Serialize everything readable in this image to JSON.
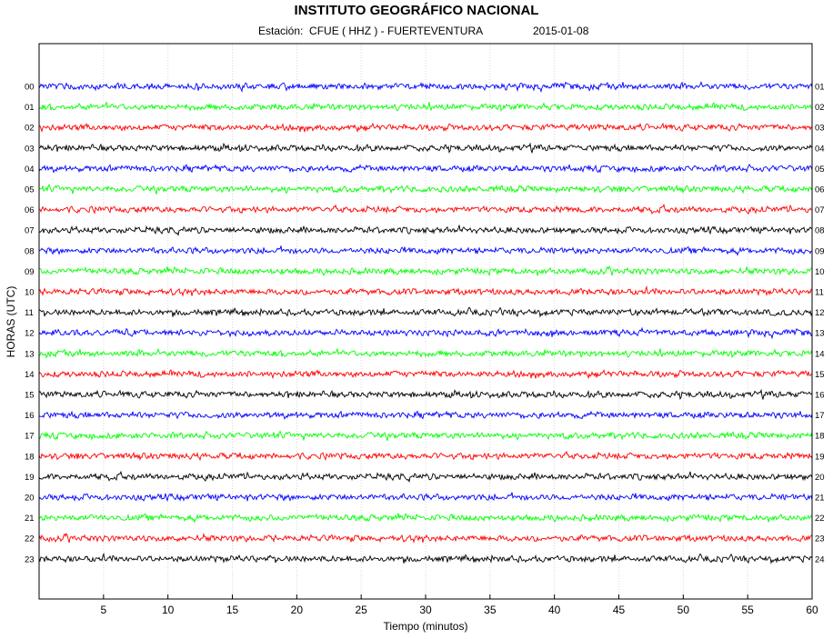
{
  "header": {
    "title": "INSTITUTO GEOGRÁFICO NACIONAL",
    "station_text": "Estación:  CFUE ( HHZ ) - FUERTEVENTURA",
    "date": "2015-01-08"
  },
  "chart_data": {
    "type": "line",
    "title": "INSTITUTO GEOGRÁFICO NACIONAL",
    "subtitle": "Estación:  CFUE ( HHZ ) - FUERTEVENTURA          2015-01-08",
    "xlabel": "Tiempo (minutos)",
    "ylabel": "HORAS (UTC)",
    "xlim": [
      0,
      60
    ],
    "x_ticks": [
      5,
      10,
      15,
      20,
      25,
      30,
      35,
      40,
      45,
      50,
      55,
      60
    ],
    "grid": "vertical dotted lines every 5 minutes",
    "series_colors": [
      "#0000ff",
      "#00ff00",
      "#ff0000",
      "#000000"
    ],
    "rows": [
      {
        "left": "00",
        "right": "01",
        "color": "#0000ff"
      },
      {
        "left": "01",
        "right": "02",
        "color": "#00ff00"
      },
      {
        "left": "02",
        "right": "03",
        "color": "#ff0000"
      },
      {
        "left": "03",
        "right": "04",
        "color": "#000000"
      },
      {
        "left": "04",
        "right": "05",
        "color": "#0000ff"
      },
      {
        "left": "05",
        "right": "06",
        "color": "#00ff00"
      },
      {
        "left": "06",
        "right": "07",
        "color": "#ff0000"
      },
      {
        "left": "07",
        "right": "08",
        "color": "#000000"
      },
      {
        "left": "08",
        "right": "09",
        "color": "#0000ff"
      },
      {
        "left": "09",
        "right": "10",
        "color": "#00ff00"
      },
      {
        "left": "10",
        "right": "11",
        "color": "#ff0000"
      },
      {
        "left": "11",
        "right": "12",
        "color": "#000000"
      },
      {
        "left": "12",
        "right": "13",
        "color": "#0000ff"
      },
      {
        "left": "13",
        "right": "14",
        "color": "#00ff00"
      },
      {
        "left": "14",
        "right": "15",
        "color": "#ff0000"
      },
      {
        "left": "15",
        "right": "16",
        "color": "#000000"
      },
      {
        "left": "16",
        "right": "17",
        "color": "#0000ff"
      },
      {
        "left": "17",
        "right": "18",
        "color": "#00ff00"
      },
      {
        "left": "18",
        "right": "19",
        "color": "#ff0000"
      },
      {
        "left": "19",
        "right": "20",
        "color": "#000000"
      },
      {
        "left": "20",
        "right": "21",
        "color": "#0000ff"
      },
      {
        "left": "21",
        "right": "22",
        "color": "#00ff00"
      },
      {
        "left": "22",
        "right": "23",
        "color": "#ff0000"
      },
      {
        "left": "23",
        "right": "24",
        "color": "#000000"
      }
    ]
  }
}
